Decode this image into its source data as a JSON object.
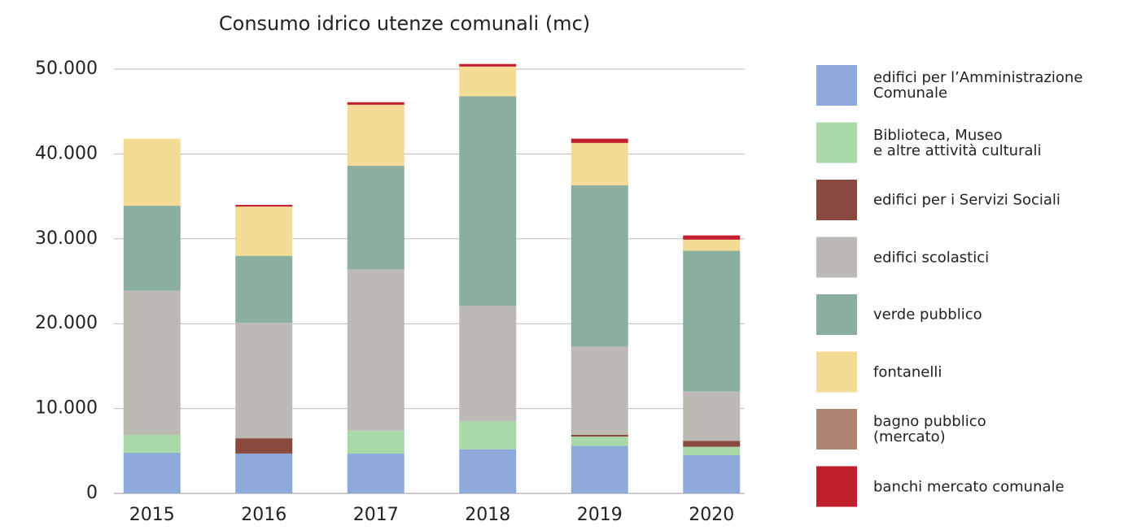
{
  "chart_data": {
    "type": "stacked_bar",
    "title": "Consumo idrico utenze comunali  (mc)",
    "categories": [
      "2015",
      "2016",
      "2017",
      "2018",
      "2019",
      "2020"
    ],
    "series": [
      {
        "name": "edifici per l’Amministrazione\nComunale",
        "color": "#8eaadb",
        "values": [
          4800,
          4700,
          4700,
          5200,
          5600,
          4500
        ]
      },
      {
        "name": "Biblioteca, Museo\ne altre attività culturali",
        "color": "#a9d9a9",
        "values": [
          2100,
          0,
          2700,
          3300,
          1100,
          1000
        ]
      },
      {
        "name": "edifici per i Servizi Sociali",
        "color": "#8b4a3f",
        "values": [
          0,
          1800,
          0,
          0,
          200,
          700
        ]
      },
      {
        "name": "edifici scolastici",
        "color": "#bdbab5",
        "values": [
          17000,
          13600,
          19000,
          13600,
          10400,
          5800
        ]
      },
      {
        "name": "verde pubblico",
        "color": "#8aaf9f",
        "values": [
          10000,
          7900,
          12200,
          24700,
          19000,
          16600
        ]
      },
      {
        "name": "fontanelli",
        "color": "#f5dc96",
        "values": [
          7900,
          5800,
          7200,
          3500,
          5000,
          1300
        ]
      },
      {
        "name": "bagno pubblico\n(mercato)",
        "color": "#b08472",
        "values": [
          0,
          0,
          0,
          0,
          0,
          0
        ]
      },
      {
        "name": "banchi mercato comunale",
        "color": "#c0202e",
        "values": [
          0,
          200,
          300,
          300,
          500,
          500
        ]
      }
    ],
    "ylim": [
      0,
      50000
    ],
    "yticks": [
      0,
      {
        "value": 10000,
        "label": "10.000"
      },
      {
        "value": 20000,
        "label": "20.000"
      },
      {
        "value": 30000,
        "label": "30.000"
      },
      {
        "value": 40000,
        "label": "40.000"
      },
      {
        "value": 50000,
        "label": "50.000"
      }
    ],
    "grid": true,
    "legend": "right"
  }
}
